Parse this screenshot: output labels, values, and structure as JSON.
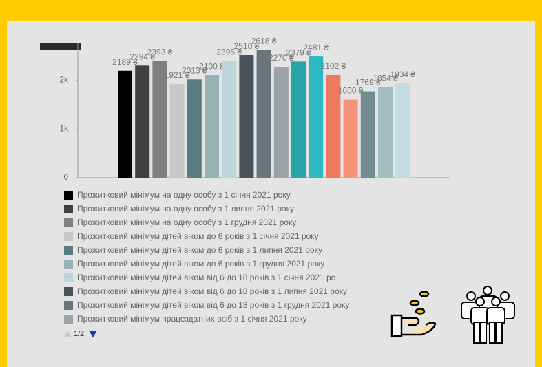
{
  "chart_data": {
    "type": "bar",
    "values": [
      2189,
      2294,
      2393,
      1921,
      2013,
      2100,
      2395,
      2510,
      2618,
      2270,
      2379,
      2481,
      2102,
      1600,
      1769,
      1854,
      1934
    ],
    "value_labels": [
      "2189 ₴",
      "2294 ₴",
      "2393 ₴",
      "1921 ₴",
      "2013 ₴",
      "2100 ₴",
      "2395 ₴",
      "2510 ₴",
      "2618 ₴",
      "2270 ₴",
      "2379 ₴",
      "2481 ₴",
      "2102 ₴",
      "1600 ₴",
      "1769 ₴",
      "1854 ₴",
      "1934 ₴"
    ],
    "colors": [
      "#000000",
      "#404040",
      "#808080",
      "#c8c8c8",
      "#5a7b80",
      "#97b1b5",
      "#bcd6dc",
      "#46545a",
      "#69767a",
      "#9aa3a5",
      "#2aa5a8",
      "#2bbac4",
      "#ee7a62",
      "#f79379",
      "#728c91",
      "#a3bdc1",
      "#c4dde2"
    ],
    "legend": [
      "Прожитковий мінімум на одну особу з 1 січня 2021 року",
      "Прожитковий мінімум на одну особу з 1 липня 2021 року",
      "Прожитковий мінімум на одну особу з 1 грудня 2021 року",
      "Прожитковий мінімум дітей віком до 6 років з 1 січня 2021 року",
      "Прожитковий мінімум дітей віком до 6 років з 1 липня 2021 року",
      "Прожитковий мінімум дітей віком до 6 років з 1 грудня 2021 року",
      "Прожитковий мінімум дітей віком від 6 до 18 років з 1 січня 2021 ро",
      "Прожитковий мінімум дітей віком від 6 до 18 років з 1 липня 2021 року",
      "Прожитковий мінімум дітей віком від 6 до 18 років з 1 грудня 2021 року",
      "Прожитковий мінімум працездатних осіб з 1 січня 2021 року"
    ],
    "legend_page": "1/2",
    "ylim": [
      0,
      2750
    ],
    "yticks": [
      0,
      {
        "value": 1000,
        "label": "1k"
      },
      {
        "value": 2000,
        "label": "2k"
      }
    ]
  }
}
